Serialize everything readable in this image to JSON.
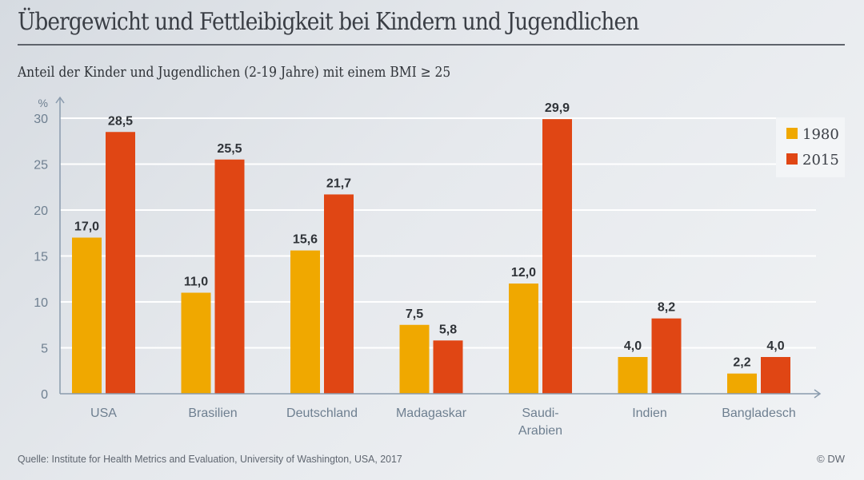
{
  "header": {
    "title": "Übergewicht und Fettleibigkeit bei Kindern und Jugendlichen",
    "subtitle": "Anteil der Kinder und Jugendlichen (2-19 Jahre) mit einem BMI ≥ 25"
  },
  "footer": {
    "source": "Quelle: Institute for Health Metrics and Evaluation, University of Washington, USA, 2017",
    "credit": "© DW"
  },
  "chart_data": {
    "type": "bar",
    "title": "Übergewicht und Fettleibigkeit bei Kindern und Jugendlichen",
    "subtitle": "Anteil der Kinder und Jugendlichen (2-19 Jahre) mit einem BMI ≥ 25",
    "xlabel": "",
    "ylabel": "%",
    "ylim": [
      0,
      30
    ],
    "yticks": [
      0,
      5,
      10,
      15,
      20,
      25,
      30
    ],
    "grid": true,
    "legend_position": "top-right",
    "categories": [
      [
        "USA"
      ],
      [
        "Brasilien"
      ],
      [
        "Deutschland"
      ],
      [
        "Madagaskar"
      ],
      [
        "Saudi-",
        "Arabien"
      ],
      [
        "Indien"
      ],
      [
        "Bangladesch"
      ]
    ],
    "series": [
      {
        "name": "1980",
        "color": "#f0a800",
        "values": [
          17.0,
          11.0,
          15.6,
          7.5,
          12.0,
          4.0,
          2.2
        ],
        "labels": [
          "17,0",
          "11,0",
          "15,6",
          "7,5",
          "12,0",
          "4,0",
          "2,2"
        ]
      },
      {
        "name": "2015",
        "color": "#e04614",
        "values": [
          28.5,
          25.5,
          21.7,
          5.8,
          29.9,
          8.2,
          4.0
        ],
        "labels": [
          "28,5",
          "25,5",
          "21,7",
          "5,8",
          "29,9",
          "8,2",
          "4,0"
        ]
      }
    ]
  }
}
